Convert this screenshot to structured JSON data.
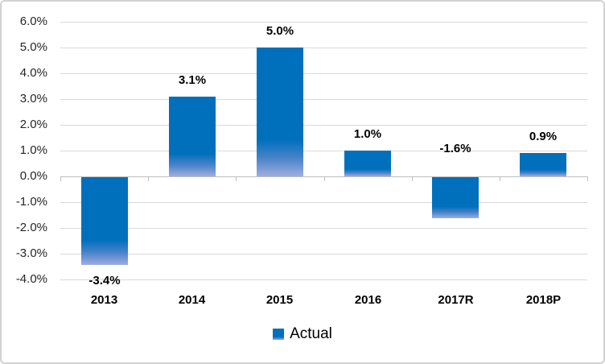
{
  "chart_data": {
    "type": "bar",
    "title": "",
    "categories": [
      "2013",
      "2014",
      "2015",
      "2016",
      "2017R",
      "2018P"
    ],
    "values": [
      -3.4,
      3.1,
      5.0,
      1.0,
      -1.6,
      0.9
    ],
    "data_labels": [
      "-3.4%",
      "3.1%",
      "5.0%",
      "1.0%",
      "-1.6%",
      "0.9%"
    ],
    "series": [
      {
        "name": "Actual",
        "values": [
          -3.4,
          3.1,
          5.0,
          1.0,
          -1.6,
          0.9
        ]
      }
    ],
    "y_axis": {
      "ticks": [
        {
          "value": 6,
          "label": "6.0%"
        },
        {
          "value": 5,
          "label": "5.0%"
        },
        {
          "value": 4,
          "label": "4.0%"
        },
        {
          "value": 3,
          "label": "3.0%"
        },
        {
          "value": 2,
          "label": "2.0%"
        },
        {
          "value": 1,
          "label": "1.0%"
        },
        {
          "value": 0,
          "label": "0.0%"
        },
        {
          "value": -1,
          "label": "-1.0%"
        },
        {
          "value": -2,
          "label": "-2.0%"
        },
        {
          "value": -3,
          "label": "-3.0%"
        },
        {
          "value": -4,
          "label": "-4.0%"
        }
      ],
      "ylim": [
        -4,
        6
      ]
    },
    "grid": true,
    "legend_position": "bottom",
    "legend_label": "Actual",
    "colors": {
      "bar": "#0170bc",
      "bar_fade_mid": "#4a83c9",
      "bar_fade_end": "#9faedd",
      "gridline": "#d9d9d9",
      "axis": "#bfbfbf",
      "text": "#262626",
      "frame": "#d2d2d2"
    }
  }
}
